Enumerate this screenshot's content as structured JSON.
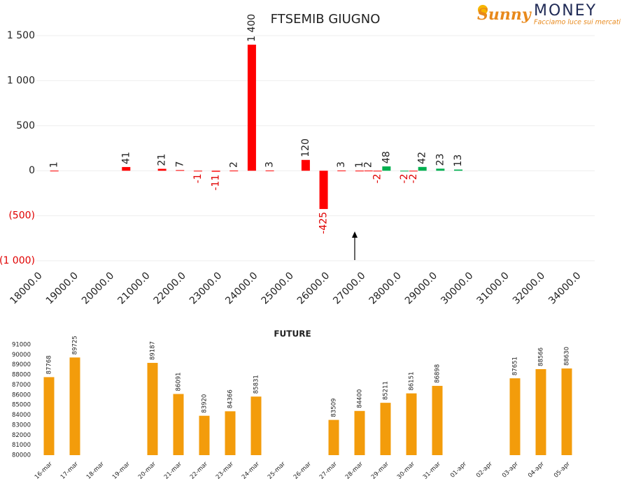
{
  "logo": {
    "brand": "Sunny",
    "name": "MONEY",
    "tagline": "Facciamo luce sui mercati"
  },
  "chart_data": [
    {
      "type": "bar",
      "title": "FTSEMIB GIUGNO",
      "categories": [
        "18000.0",
        null,
        null,
        null,
        "19000.0",
        null,
        null,
        null,
        "20000.0",
        null,
        null,
        null,
        "21000.0",
        null,
        null,
        null,
        "22000.0",
        null,
        null,
        null,
        "23000.0",
        null,
        null,
        null,
        "24000.0",
        null,
        null,
        null,
        "25000.0",
        null,
        null,
        null,
        "26000.0",
        null,
        null,
        null,
        "27000.0",
        null,
        null,
        null,
        "28000.0",
        null,
        null,
        null,
        "29000.0",
        null,
        null,
        null,
        "30000.0",
        null,
        null,
        null,
        "31000.0",
        null,
        null,
        null,
        "32000.0",
        null,
        null,
        null,
        "34000.0"
      ],
      "values": [
        null,
        null,
        1,
        null,
        null,
        null,
        null,
        null,
        null,
        null,
        41,
        null,
        null,
        null,
        21,
        null,
        7,
        null,
        -1,
        null,
        -11,
        null,
        2,
        null,
        1400,
        null,
        3,
        null,
        null,
        null,
        120,
        null,
        -425,
        null,
        3,
        null,
        1,
        2,
        -2,
        48,
        null,
        -2,
        -2,
        42,
        null,
        23,
        null,
        13,
        null,
        null,
        null,
        null,
        null,
        null,
        null,
        null,
        null,
        null,
        null,
        null,
        null
      ],
      "value_labels": [
        null,
        null,
        "1",
        null,
        null,
        null,
        null,
        null,
        null,
        null,
        "41",
        null,
        null,
        null,
        "21",
        null,
        "7",
        null,
        "-1",
        null,
        "-11",
        null,
        "2",
        null,
        "1 400",
        null,
        "3",
        null,
        null,
        null,
        "120",
        null,
        "-425",
        null,
        "3",
        null,
        "1",
        "2",
        "-2",
        "48",
        null,
        "-2",
        "-2",
        "42",
        null,
        "23",
        null,
        "13",
        null,
        null,
        null,
        null,
        null,
        null,
        null,
        null,
        null,
        null,
        null,
        null,
        null
      ],
      "colors": [
        null,
        null,
        "#ff0000",
        null,
        null,
        null,
        null,
        null,
        null,
        null,
        "#ff0000",
        null,
        null,
        null,
        "#ff0000",
        null,
        "#ff0000",
        null,
        "#ff0000",
        null,
        "#ff0000",
        null,
        "#ff0000",
        null,
        "#ff0000",
        null,
        "#ff0000",
        null,
        null,
        null,
        "#ff0000",
        null,
        "#ff0000",
        null,
        "#ff0000",
        null,
        "#ff0000",
        "#ff0000",
        "#ff0000",
        "#00b050",
        null,
        "#00b050",
        "#ff0000",
        "#00b050",
        null,
        "#00b050",
        null,
        "#00b050",
        null,
        null,
        null,
        null,
        null,
        null,
        null,
        null,
        null,
        null,
        null,
        null,
        null
      ],
      "ylim": [
        -1000,
        1500
      ],
      "yticks": [
        {
          "value": -1000,
          "label": "(1 000)"
        },
        {
          "value": -500,
          "label": "(500)"
        },
        0,
        500,
        {
          "value": 1000,
          "label": "1 000"
        },
        {
          "value": 1500,
          "label": "1 500"
        }
      ],
      "grid": true
    },
    {
      "type": "bar",
      "title": "FUTURE",
      "color": "#f39c0b",
      "categories": [
        "16-mar",
        "17-mar",
        "18-mar",
        "19-mar",
        "20-mar",
        "21-mar",
        "22-mar",
        "23-mar",
        "24-mar",
        "25-mar",
        "26-mar",
        "27-mar",
        "28-mar",
        "29-mar",
        "30-mar",
        "31-mar",
        "01-apr",
        "02-apr",
        "03-apr",
        "04-apr",
        "05-apr"
      ],
      "values": [
        87768,
        89725,
        null,
        null,
        89187,
        86091,
        83920,
        84366,
        85831,
        null,
        null,
        83509,
        84400,
        85211,
        86151,
        86898,
        null,
        null,
        87651,
        88566,
        88630
      ],
      "ylim": [
        80000,
        91000
      ],
      "yticks": [
        80000,
        81000,
        82000,
        83000,
        84000,
        85000,
        86000,
        87000,
        88000,
        89000,
        90000,
        91000
      ],
      "grid": false
    }
  ]
}
